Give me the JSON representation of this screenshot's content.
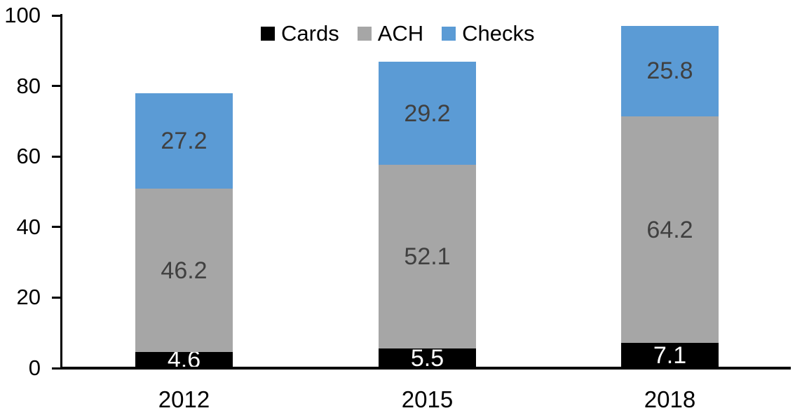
{
  "chart_data": {
    "type": "bar",
    "stacked": true,
    "title": "",
    "categories": [
      "2012",
      "2015",
      "2018"
    ],
    "series": [
      {
        "name": "Cards",
        "color": "#000000",
        "label_color": "#ffffff",
        "values": [
          4.6,
          5.5,
          7.1
        ]
      },
      {
        "name": "ACH",
        "color": "#a6a6a6",
        "label_color": "#404040",
        "values": [
          46.2,
          52.1,
          64.2
        ]
      },
      {
        "name": "Checks",
        "color": "#5b9bd5",
        "label_color": "#404040",
        "values": [
          27.2,
          29.2,
          25.8
        ]
      }
    ],
    "totals": [
      78.0,
      86.8,
      97.1
    ],
    "ylim": [
      0,
      100
    ],
    "yticks": [
      0,
      20,
      40,
      60,
      80,
      100
    ],
    "xlabel": "",
    "ylabel": "",
    "grid": false,
    "legend_position": "top",
    "axis_color": "#000000"
  }
}
